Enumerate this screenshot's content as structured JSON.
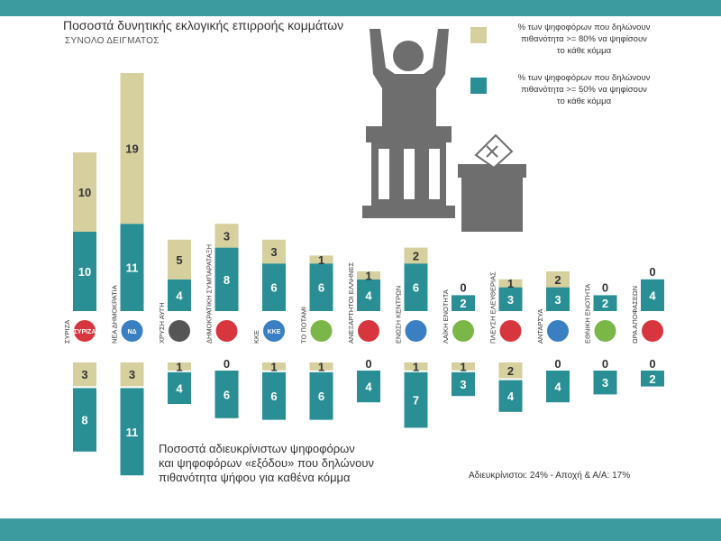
{
  "colors": {
    "beige": "#d6cf9e",
    "teal": "#2a8f95",
    "strip": "#3c9b9e",
    "icon": "#6e6e6e"
  },
  "header": {
    "title": "Ποσοστά δυνητικής εκλογικής επιρροής κομμάτων",
    "subtitle": "ΣΥΝΟΛΟ ΔΕΙΓΜΑΤΟΣ"
  },
  "legend": {
    "beige_line1": "% των ψηφοφόρων που δηλώνουν",
    "beige_line2": "πιθανότητα >= 80% να ψηφίσουν",
    "beige_line3": "το κάθε κόμμα",
    "teal_line1": "% των ψηφοφόρων που δηλώνουν",
    "teal_line2": "πιθανότητα >= 50% να ψηφίσουν",
    "teal_line3": "το κάθε κόμμα"
  },
  "note": {
    "line1": "Ποσοστά αδιευκρίνιστων ψηφοφόρων",
    "line2": "και ψηφοφόρων «εξόδου» που δηλώνουν",
    "line3": "πιθανότητα ψήφου για καθένα κόμμα"
  },
  "footer": {
    "undecided": "Αδιευκρίνιστοι: 24%",
    "separator": "-",
    "abstain": "Αποχή & Α/Α: 17%"
  },
  "chart_data": {
    "type": "bar",
    "title": "Ποσοστά δυνητικής εκλογικής επιρροής κομμάτων",
    "subtitle": "ΣΥΝΟΛΟ ΔΕΙΓΜΑΤΟΣ",
    "categories": [
      "ΣΥΡΙΖΑ",
      "ΝΕΑ ΔΗΜΟΚΡΑΤΙΑ",
      "ΧΡΥΣΗ ΑΥΓΗ",
      "ΔΗΜΟΚΡΑΤΙΚΗ ΣΥΜΠΑΡΑΤΑΞΗ",
      "ΚΚΕ",
      "ΤΟ ΠΟΤΑΜΙ",
      "ΑΝΕΞΑΡΤΗΤΟΙ ΕΛΛΗΝΕΣ",
      "ΕΝΩΣΗ ΚΕΝΤΡΩΝ",
      "ΛΑΪΚΗ ΕΝΟΤΗΤΑ",
      "ΠΛΕΥΣΗ ΕΛΕΥΘΕΡΙΑΣ",
      "ΑΝΤΑΡΣΥΑ",
      "ΕΘΝΙΚΗ ΕΝΟΤΗΤΑ",
      "ΩΡΑ ΑΠΟΦΑΣΕΩΝ"
    ],
    "upper": {
      "series": [
        {
          "name": ">= 50%",
          "values": [
            10,
            11,
            4,
            8,
            6,
            6,
            4,
            6,
            2,
            3,
            3,
            2,
            4
          ]
        },
        {
          "name": ">= 80%",
          "values": [
            10,
            19,
            5,
            3,
            3,
            1,
            1,
            2,
            0,
            1,
            2,
            0,
            0
          ]
        }
      ]
    },
    "lower": {
      "series": [
        {
          "name": ">= 80%",
          "values": [
            3,
            3,
            1,
            0,
            1,
            1,
            0,
            1,
            1,
            2,
            0,
            0,
            0
          ]
        },
        {
          "name": ">= 50%",
          "values": [
            8,
            11,
            4,
            6,
            6,
            6,
            4,
            7,
            3,
            4,
            4,
            3,
            2
          ]
        }
      ]
    },
    "logo_labels": [
      "ΣΥΡΙΖΑ",
      "ΝΔ",
      "",
      "",
      "ΚΚΕ",
      "",
      "",
      "",
      "",
      "",
      "",
      "",
      ""
    ],
    "unit": "%"
  }
}
